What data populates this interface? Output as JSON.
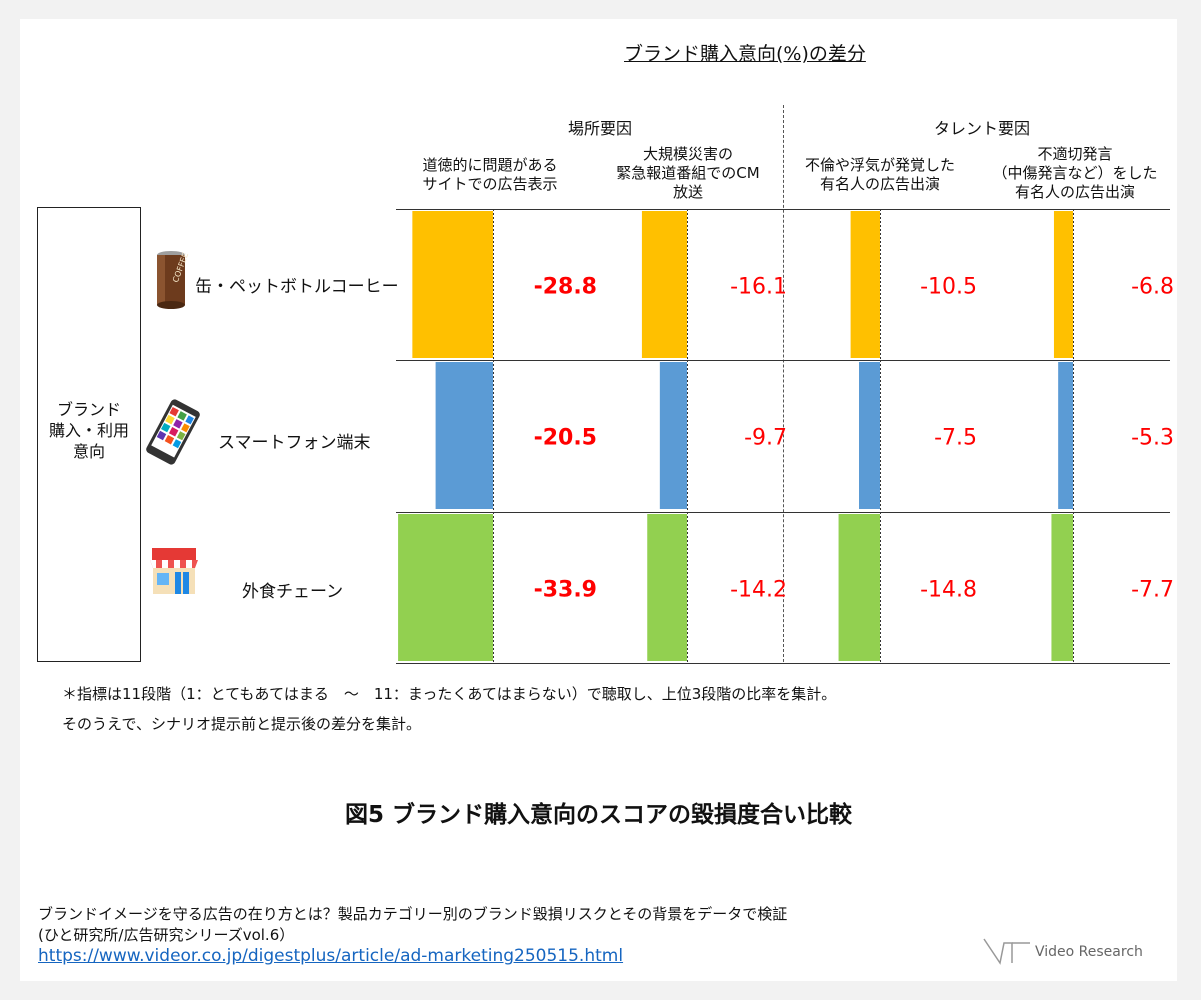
{
  "chart_data": {
    "type": "bar",
    "title": "ブランド購入意向(%)の差分",
    "groups": [
      {
        "label": "場所要因",
        "columns": [
          0,
          1
        ]
      },
      {
        "label": "タレント要因",
        "columns": [
          2,
          3
        ]
      }
    ],
    "columns": [
      "道徳的に問題がある\nサイトでの広告表示",
      "大規模災害の\n緊急報道番組でのCM\n放送",
      "不倫や浮気が発覚した\n有名人の広告出演",
      "不適切発言\n（中傷発言など）をした\n有名人の広告出演"
    ],
    "row_axis_label": "ブランド\n購入・利用\n意向",
    "series": [
      {
        "name": "缶・ペットボトルコーヒー",
        "icon": "coffee-can-icon",
        "color": "#FFC000",
        "values": [
          -28.8,
          -16.1,
          -10.5,
          -6.8
        ]
      },
      {
        "name": "スマートフォン端末",
        "icon": "smartphone-icon",
        "color": "#5B9BD5",
        "values": [
          -20.5,
          -9.7,
          -7.5,
          -5.3
        ]
      },
      {
        "name": "外食チェーン",
        "icon": "restaurant-icon",
        "color": "#92D050",
        "values": [
          -33.9,
          -14.2,
          -14.8,
          -7.7
        ]
      }
    ],
    "value_label_color": "#FF0000",
    "bold_column": 0
  },
  "notes": [
    "＊指標は11段階（1：とてもあてはまる　～　11：まったくあてはまらない）で聴取し、上位3段階の比率を集計。",
    "そのうえで、シナリオ提示前と提示後の差分を集計。"
  ],
  "figure_title": "図5 ブランド購入意向のスコアの毀損度合い比較",
  "source": {
    "line1": "ブランドイメージを守る広告の在り方とは？製品カテゴリー別のブランド毀損リスクとその背景をデータで検証",
    "line2": "(ひと研究所/広告研究シリーズvol.6）",
    "url": "https://www.videor.co.jp/digestplus/article/ad-marketing250515.html"
  },
  "logo_text": "Video Research"
}
